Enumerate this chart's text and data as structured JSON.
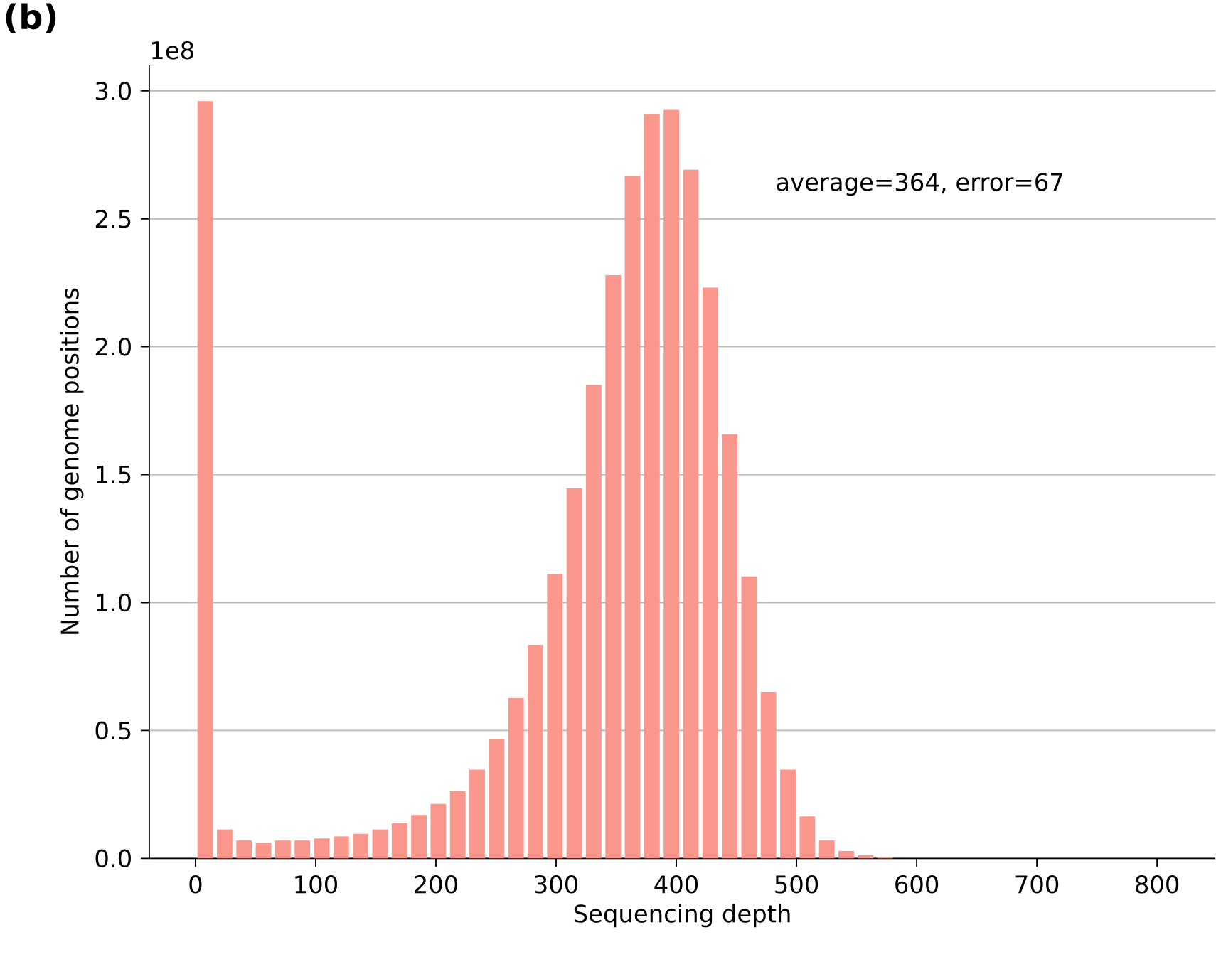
{
  "chart_data": {
    "type": "histogram",
    "title": "(b)",
    "xlabel": "Sequencing depth",
    "ylabel": "Number of genome positions",
    "annotations": [
      "1e8",
      "average=364, error=67"
    ],
    "bins": [
      0,
      16.16,
      32.32,
      48.48,
      64.64,
      80.8,
      96.96,
      113.12,
      129.28,
      145.44,
      161.6,
      177.76,
      193.92,
      210.08,
      226.24,
      242.4,
      258.56,
      274.72,
      290.88,
      307.04,
      323.2,
      339.36,
      355.52,
      371.68,
      387.84,
      404,
      420.16,
      436.32,
      452.48,
      468.64,
      484.8,
      500.96,
      517.12,
      533.28,
      549.44,
      565.6,
      581.76,
      597.92,
      614.08,
      630.24,
      646.4,
      662.56,
      678.72,
      694.88,
      711.04,
      727.2,
      743.36,
      759.52,
      775.68,
      791.84,
      808
    ],
    "values": [
      2.96,
      0.113,
      0.07,
      0.062,
      0.07,
      0.07,
      0.078,
      0.086,
      0.096,
      0.113,
      0.137,
      0.17,
      0.213,
      0.263,
      0.347,
      0.466,
      0.626,
      0.835,
      1.112,
      1.447,
      1.851,
      2.28,
      2.666,
      2.91,
      2.926,
      2.692,
      2.231,
      1.658,
      1.102,
      0.651,
      0.347,
      0.164,
      0.07,
      0.029,
      0.012,
      0.004,
      0,
      0,
      0,
      0,
      0,
      0,
      0,
      0,
      0,
      0,
      0,
      0,
      0,
      0
    ],
    "color": "#f9978c",
    "xlim": [
      -38.5,
      848.5
    ],
    "ylim": [
      0,
      3.1
    ],
    "xticks": [
      0,
      100,
      200,
      300,
      400,
      500,
      600,
      700,
      800
    ],
    "yticks": [
      {
        "value": 0,
        "label": "0.0"
      },
      {
        "value": 0.5,
        "label": "0.5"
      },
      {
        "value": 1,
        "label": "1.0"
      },
      {
        "value": 1.5,
        "label": "1.5"
      },
      {
        "value": 2,
        "label": "2.0"
      },
      {
        "value": 2.5,
        "label": "2.5"
      },
      {
        "value": 3,
        "label": "3.0"
      }
    ],
    "grid": "y"
  }
}
